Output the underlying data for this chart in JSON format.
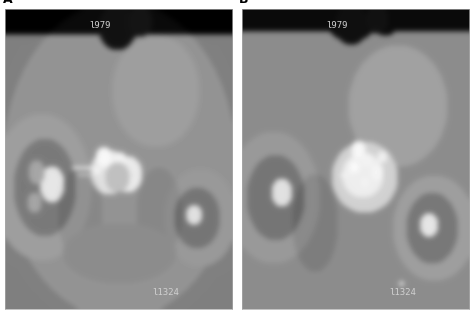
{
  "figsize": [
    4.74,
    3.12
  ],
  "dpi": 100,
  "panel_labels": [
    "A",
    "B"
  ],
  "top_texts_A": "l979",
  "top_texts_B": "l979",
  "bottom_texts": "l1324",
  "bg_color": "#ffffff",
  "panel_label_color": "#000000",
  "overlay_text_color": "#d0d0d0",
  "label_fontsize": 9,
  "overlay_fontsize": 6.5
}
